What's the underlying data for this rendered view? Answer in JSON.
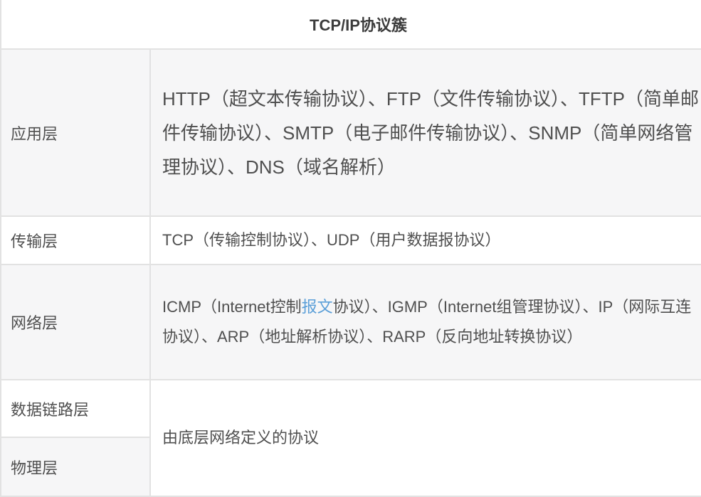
{
  "colors": {
    "stripe_background": "#f6f6f7",
    "cell_background": "#ffffff",
    "border": "#e2e2e2",
    "body_text": "#4f4f4f",
    "title_text": "#3c3c3c",
    "link": "#5b9fd8"
  },
  "table": {
    "title": "TCP/IP协议簇",
    "rows": [
      {
        "layer": "应用层",
        "protocols": "HTTP（超文本传输协议）、FTP（文件传输协议）、TFTP（简单邮件传输协议）、SMTP（电子邮件传输协议）、SNMP（简单网络管理协议）、DNS（域名解析）"
      },
      {
        "layer": "传输层",
        "protocols": "TCP（传输控制协议）、UDP（用户数据报协议）"
      },
      {
        "layer": "网络层",
        "protocols_before_link": "ICMP（Internet控制",
        "link_text": "报文",
        "protocols_after_link": "协议）、IGMP（Internet组管理协议）、IP（网际互连协议）、ARP（地址解析协议）、RARP（反向地址转换协议）"
      },
      {
        "layer": "数据链路层",
        "protocols": "由底层网络定义的协议"
      },
      {
        "layer": "物理层"
      }
    ]
  }
}
